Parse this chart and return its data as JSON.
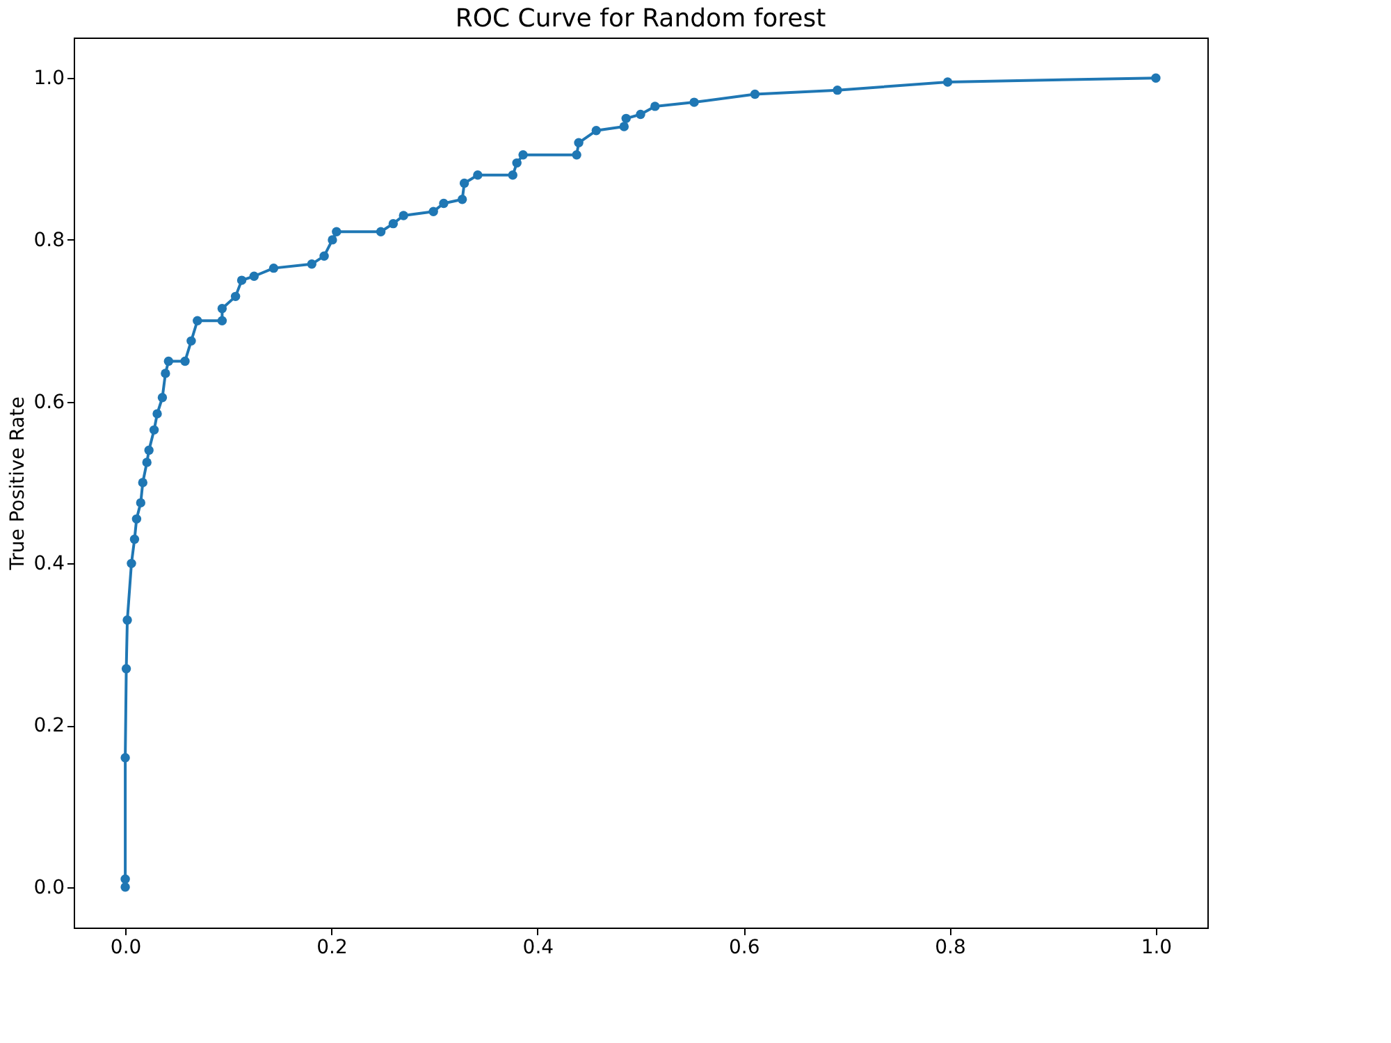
{
  "chart_data": {
    "type": "line",
    "title": "ROC Curve for Random forest",
    "ylabel": "True Positive Rate",
    "x": [
      0,
      0,
      0,
      0.001,
      0.002,
      0.006,
      0.009,
      0.011,
      0.015,
      0.017,
      0.021,
      0.023,
      0.028,
      0.031,
      0.036,
      0.039,
      0.042,
      0.058,
      0.064,
      0.07,
      0.094,
      0.094,
      0.107,
      0.113,
      0.125,
      0.144,
      0.181,
      0.193,
      0.201,
      0.205,
      0.248,
      0.26,
      0.27,
      0.299,
      0.309,
      0.327,
      0.329,
      0.342,
      0.376,
      0.38,
      0.386,
      0.438,
      0.44,
      0.457,
      0.484,
      0.486,
      0.5,
      0.514,
      0.552,
      0.611,
      0.691,
      0.798,
      1.0
    ],
    "series": [
      {
        "color": "#1f77b4",
        "values": [
          0,
          0.01,
          0.16,
          0.27,
          0.33,
          0.4,
          0.43,
          0.455,
          0.475,
          0.5,
          0.525,
          0.54,
          0.565,
          0.585,
          0.605,
          0.635,
          0.65,
          0.65,
          0.675,
          0.7,
          0.7,
          0.715,
          0.73,
          0.75,
          0.755,
          0.765,
          0.77,
          0.78,
          0.8,
          0.81,
          0.81,
          0.82,
          0.83,
          0.835,
          0.845,
          0.85,
          0.87,
          0.88,
          0.88,
          0.895,
          0.905,
          0.905,
          0.92,
          0.935,
          0.94,
          0.95,
          0.955,
          0.965,
          0.97,
          0.98,
          0.985,
          0.995,
          1.0
        ]
      }
    ],
    "xlim": [
      -0.05,
      1.05
    ],
    "ylim": [
      -0.05,
      1.05
    ],
    "xticks": [
      {
        "value": 0,
        "label": "0.0"
      },
      {
        "value": 0.2,
        "label": "0.2"
      },
      {
        "value": 0.4,
        "label": "0.4"
      },
      {
        "value": 0.6,
        "label": "0.6"
      },
      {
        "value": 0.8,
        "label": "0.8"
      },
      {
        "value": 1,
        "label": "1.0"
      }
    ],
    "yticks": [
      {
        "value": 0,
        "label": "0.0"
      },
      {
        "value": 0.2,
        "label": "0.2"
      },
      {
        "value": 0.4,
        "label": "0.4"
      },
      {
        "value": 0.6,
        "label": "0.6"
      },
      {
        "value": 0.8,
        "label": "0.8"
      },
      {
        "value": 1,
        "label": "1.0"
      }
    ],
    "marker": "circle",
    "line_style": "solid"
  }
}
